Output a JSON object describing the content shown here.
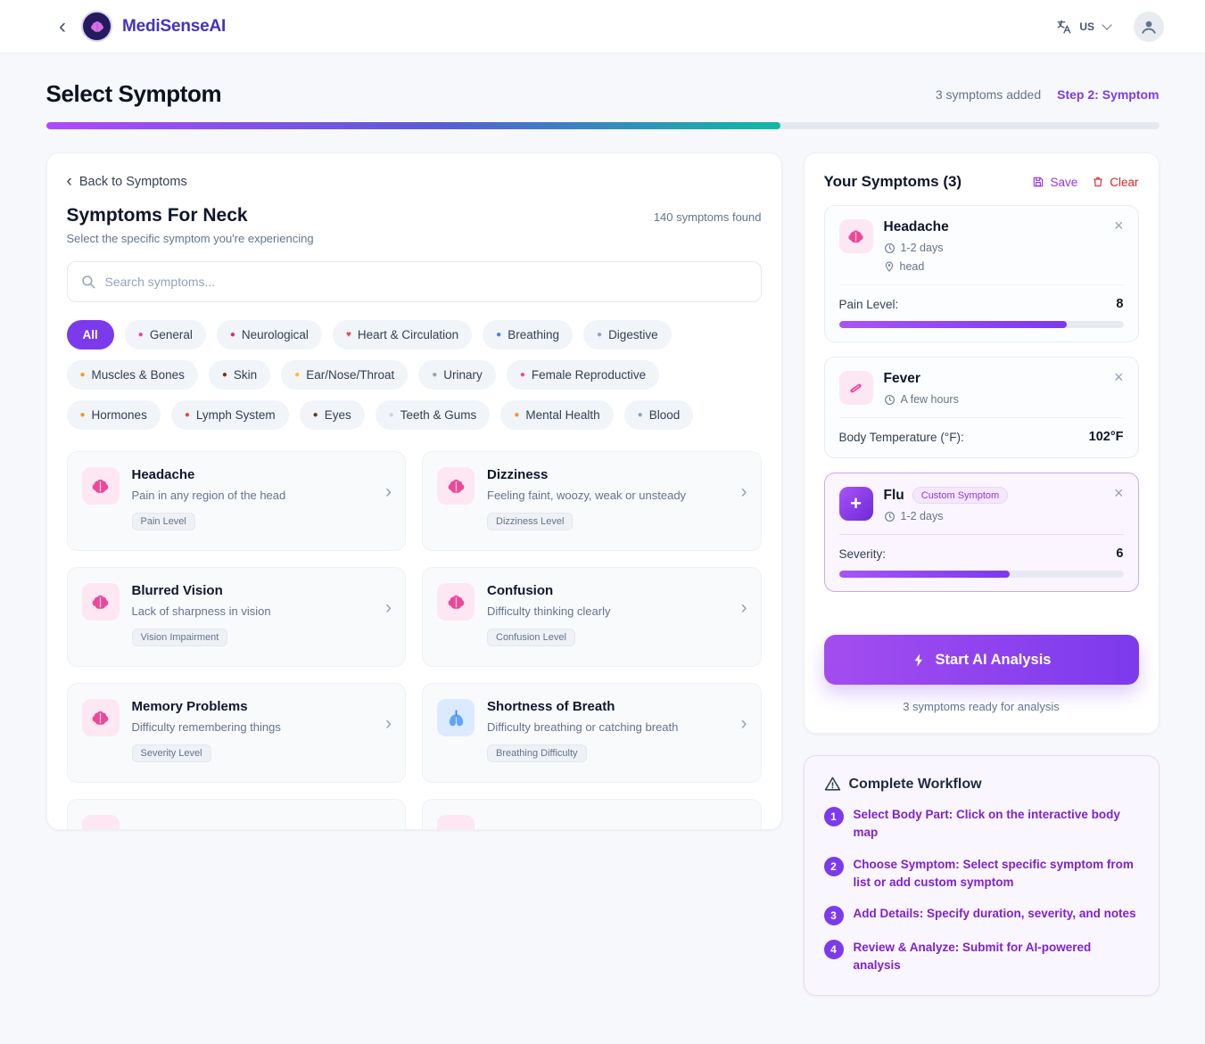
{
  "topbar": {
    "brand": "MediSenseAI",
    "lang": "US"
  },
  "header": {
    "title": "Select Symptom",
    "symptoms_added": "3 symptoms added",
    "step": "Step 2: Symptom",
    "progress_pct": 66
  },
  "symptom_panel": {
    "back_link": "Back to Symptoms",
    "title": "Symptoms For Neck",
    "subtitle": "Select the specific symptom you're experiencing",
    "results_count": "140 symptoms found",
    "search_placeholder": "Search symptoms...",
    "categories": [
      {
        "label": "All",
        "active": true
      },
      {
        "label": "General",
        "icon": "●",
        "icon_color": "#ec4899"
      },
      {
        "label": "Neurological",
        "icon": "●",
        "icon_color": "#db2777"
      },
      {
        "label": "Heart & Circulation",
        "icon": "♥",
        "icon_color": "#ef4444"
      },
      {
        "label": "Breathing",
        "icon": "●",
        "icon_color": "#3b82f6"
      },
      {
        "label": "Digestive",
        "icon": "●",
        "icon_color": "#94a3b8"
      },
      {
        "label": "Muscles & Bones",
        "icon": "●",
        "icon_color": "#f59e0b"
      },
      {
        "label": "Skin",
        "icon": "●",
        "icon_color": "#78350f"
      },
      {
        "label": "Ear/Nose/Throat",
        "icon": "●",
        "icon_color": "#fbbf24"
      },
      {
        "label": "Urinary",
        "icon": "●",
        "icon_color": "#94a3b8"
      },
      {
        "label": "Female Reproductive",
        "icon": "●",
        "icon_color": "#ec4899"
      },
      {
        "label": "Hormones",
        "icon": "●",
        "icon_color": "#f59e0b"
      },
      {
        "label": "Lymph System",
        "icon": "●",
        "icon_color": "#ef4444"
      },
      {
        "label": "Eyes",
        "icon": "●",
        "icon_color": "#78350f"
      },
      {
        "label": "Teeth & Gums",
        "icon": "●",
        "icon_color": "#cbd5e1"
      },
      {
        "label": "Mental Health",
        "icon": "●",
        "icon_color": "#fb923c"
      },
      {
        "label": "Blood",
        "icon": "●",
        "icon_color": "#94a3b8"
      }
    ],
    "symptoms": [
      {
        "title": "Headache",
        "desc": "Pain in any region of the head",
        "tag": "Pain Level",
        "icon": "brain"
      },
      {
        "title": "Dizziness",
        "desc": "Feeling faint, woozy, weak or unsteady",
        "tag": "Dizziness Level",
        "icon": "brain"
      },
      {
        "title": "Blurred Vision",
        "desc": "Lack of sharpness in vision",
        "tag": "Vision Impairment",
        "icon": "brain"
      },
      {
        "title": "Confusion",
        "desc": "Difficulty thinking clearly",
        "tag": "Confusion Level",
        "icon": "brain"
      },
      {
        "title": "Memory Problems",
        "desc": "Difficulty remembering things",
        "tag": "Severity Level",
        "icon": "brain"
      },
      {
        "title": "Shortness of Breath",
        "desc": "Difficulty breathing or catching breath",
        "tag": "Breathing Difficulty",
        "icon": "lungs"
      }
    ]
  },
  "your_symptoms": {
    "title": "Your Symptoms (3)",
    "save_label": "Save",
    "clear_label": "Clear",
    "items": [
      {
        "name": "Headache",
        "icon": "brain",
        "duration": "1-2 days",
        "location": "head",
        "metric_label": "Pain Level:",
        "metric_value": "8",
        "progress_pct": 80
      },
      {
        "name": "Fever",
        "icon": "thermo",
        "duration": "A few hours",
        "metric_label": "Body Temperature (°F):",
        "metric_value": "102°F"
      },
      {
        "name": "Flu",
        "icon": "plus",
        "custom": true,
        "badge": "Custom Symptom",
        "duration": "1-2 days",
        "metric_label": "Severity:",
        "metric_value": "6",
        "progress_pct": 60
      }
    ],
    "analyze_button": "Start AI Analysis",
    "ready_text": "3 symptoms ready for analysis"
  },
  "workflow": {
    "title": "Complete Workflow",
    "steps": [
      {
        "num": "1",
        "text": "Select Body Part: Click on the interactive body map"
      },
      {
        "num": "2",
        "text": "Choose Symptom: Select specific symptom from list or add custom symptom"
      },
      {
        "num": "3",
        "text": "Add Details: Specify duration, severity, and notes"
      },
      {
        "num": "4",
        "text": "Review & Analyze: Submit for AI-powered analysis"
      }
    ]
  },
  "colors": {
    "accent": "#7c3aed",
    "progress_gradient": [
      "#b249f8",
      "#5b5bd6",
      "#10b9a6"
    ],
    "save": "#9333ea",
    "clear": "#dc2626",
    "step_text": "#7e22ce"
  }
}
